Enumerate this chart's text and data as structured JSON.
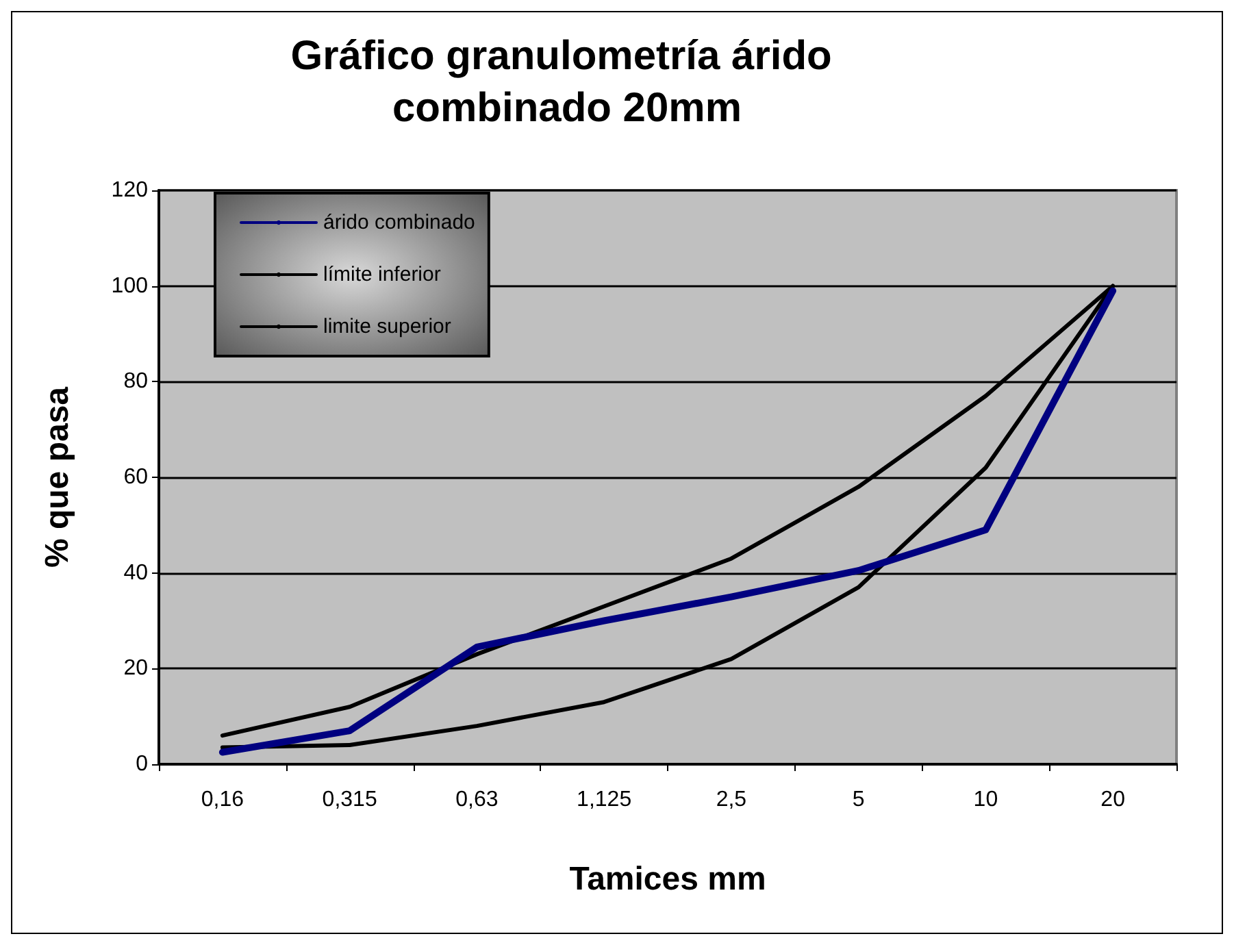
{
  "chart_data": {
    "type": "line",
    "title": "Gráfico granulometría árido combinado 20mm",
    "xlabel": "Tamices mm",
    "ylabel": "% que pasa",
    "categories": [
      "0,16",
      "0,315",
      "0,63",
      "1,125",
      "2,5",
      "5",
      "10",
      "20"
    ],
    "series": [
      {
        "name": "árido combinado",
        "color": "#000080",
        "values": [
          2.5,
          7,
          24.5,
          30,
          35,
          40.5,
          49,
          99
        ]
      },
      {
        "name": "límite inferior",
        "color": "#000000",
        "values": [
          3.5,
          4,
          8,
          13,
          22,
          37,
          62,
          100
        ]
      },
      {
        "name": "limite superior",
        "color": "#000000",
        "values": [
          6,
          12,
          23,
          33,
          43,
          58,
          77,
          100
        ]
      }
    ],
    "ylim": [
      0,
      120
    ],
    "yticks": [
      0,
      20,
      40,
      60,
      80,
      100,
      120
    ],
    "grid": "y",
    "legend": "top left",
    "marker": "none",
    "line_style": "solid"
  }
}
